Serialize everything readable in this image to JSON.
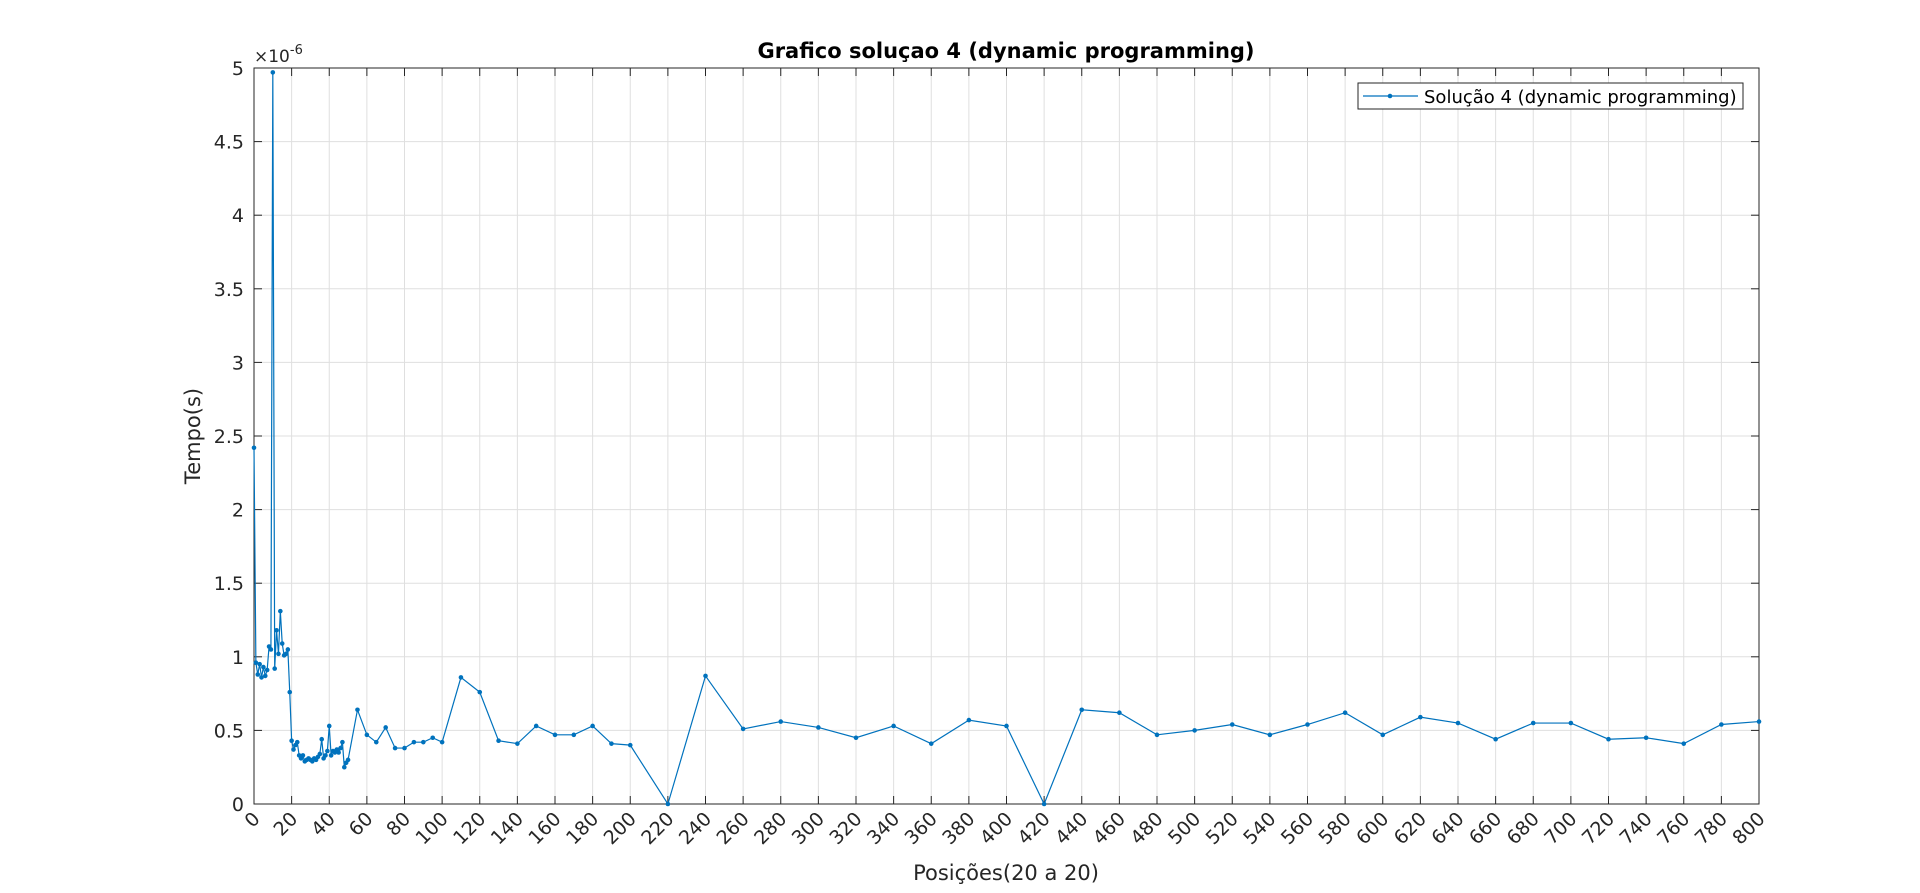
{
  "chart_data": {
    "type": "line",
    "title": "Grafico soluçao 4 (dynamic programming)",
    "x_label": "Posições(20 a 20)",
    "y_label": "Tempo(s)",
    "y_exponent": {
      "base": "×10",
      "power": "-6"
    },
    "x": [
      0,
      1,
      2,
      3,
      4,
      5,
      6,
      7,
      8,
      9,
      10,
      11,
      12,
      13,
      14,
      15,
      16,
      17,
      18,
      19,
      20,
      21,
      22,
      23,
      24,
      25,
      26,
      27,
      28,
      29,
      30,
      31,
      32,
      33,
      34,
      35,
      36,
      37,
      38,
      39,
      40,
      41,
      42,
      43,
      44,
      45,
      46,
      47,
      48,
      49,
      50,
      55,
      60,
      65,
      70,
      75,
      80,
      85,
      90,
      95,
      100,
      110,
      120,
      130,
      140,
      150,
      160,
      170,
      180,
      190,
      200,
      220,
      240,
      260,
      280,
      300,
      320,
      340,
      360,
      380,
      400,
      420,
      440,
      460,
      480,
      500,
      520,
      540,
      560,
      580,
      600,
      620,
      640,
      660,
      680,
      700,
      720,
      740,
      760,
      780,
      800
    ],
    "series": [
      {
        "name": "Solução 4 (dynamic programming)",
        "color": "#0072bd",
        "values": [
          2.42,
          0.96,
          0.88,
          0.95,
          0.86,
          0.93,
          0.87,
          0.91,
          1.07,
          1.05,
          4.97,
          0.92,
          1.18,
          1.02,
          1.31,
          1.09,
          1.01,
          1.02,
          1.05,
          0.76,
          0.43,
          0.37,
          0.4,
          0.42,
          0.33,
          0.31,
          0.33,
          0.29,
          0.3,
          0.31,
          0.3,
          0.29,
          0.31,
          0.3,
          0.32,
          0.34,
          0.44,
          0.31,
          0.33,
          0.36,
          0.53,
          0.33,
          0.36,
          0.35,
          0.37,
          0.35,
          0.38,
          0.42,
          0.25,
          0.28,
          0.3,
          0.64,
          0.47,
          0.42,
          0.52,
          0.38,
          0.38,
          0.42,
          0.42,
          0.45,
          0.42,
          0.86,
          0.76,
          0.43,
          0.41,
          0.53,
          0.47,
          0.47,
          0.53,
          0.41,
          0.4,
          0,
          0.87,
          0.51,
          0.56,
          0.52,
          0.45,
          0.53,
          0.41,
          0.57,
          0.53,
          0,
          0.64,
          0.62,
          0.47,
          0.5,
          0.54,
          0.47,
          0.54,
          0.62,
          0.47,
          0.59,
          0.55,
          0.44,
          0.55,
          0.55,
          0.44,
          0.45,
          0.41,
          0.54,
          0.56
        ]
      }
    ],
    "xlim": [
      0,
      800
    ],
    "xticks": [
      0,
      20,
      40,
      60,
      80,
      100,
      120,
      140,
      160,
      180,
      200,
      220,
      240,
      260,
      280,
      300,
      320,
      340,
      360,
      380,
      400,
      420,
      440,
      460,
      480,
      500,
      520,
      540,
      560,
      580,
      600,
      620,
      640,
      660,
      680,
      700,
      720,
      740,
      760,
      780,
      800
    ],
    "ylim": [
      0,
      5
    ],
    "yticks": [
      0,
      0.5,
      1,
      1.5,
      2,
      2.5,
      3,
      3.5,
      4,
      4.5,
      5
    ],
    "grid": true,
    "legend": "northeast"
  }
}
